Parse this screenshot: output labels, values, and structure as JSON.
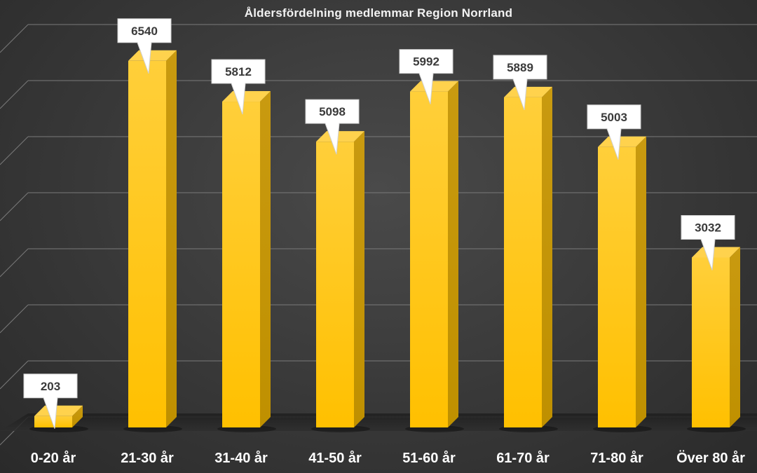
{
  "chart_data": {
    "type": "bar",
    "title": "Åldersfördelning medlemmar Region Norrland",
    "categories": [
      "0-20 år",
      "21-30 år",
      "31-40 år",
      "41-50 år",
      "51-60 år",
      "61-70 år",
      "71-80 år",
      "Över 80 år"
    ],
    "values": [
      203,
      6540,
      5812,
      5098,
      5992,
      5889,
      5003,
      3032
    ],
    "xlabel": "",
    "ylabel": "",
    "ylim": [
      0,
      7000
    ],
    "grid": true,
    "legend": "none",
    "style": "3d-column",
    "data_labels": "callout"
  },
  "colors": {
    "bar_front": "#ffc000",
    "bar_side": "#bf9000",
    "bar_top": "#ffd24d",
    "gridline": "#7a7a7a",
    "label_box": "#ffffff",
    "background": "#404040"
  }
}
